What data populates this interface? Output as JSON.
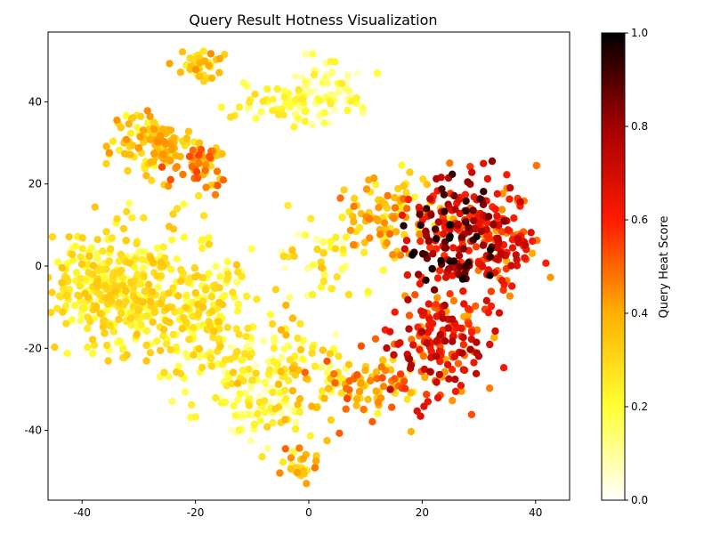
{
  "chart_data": {
    "type": "scatter",
    "title": "Query Result Hotness Visualization",
    "xlabel": "",
    "ylabel": "",
    "xlim": [
      -46,
      46
    ],
    "ylim": [
      -57,
      57
    ],
    "x_ticks": [
      -40,
      -20,
      0,
      20,
      40
    ],
    "y_ticks": [
      -40,
      -20,
      0,
      20,
      40
    ],
    "grid": false,
    "colormap": "hot_r",
    "colorbar": {
      "label": "Query Heat Score",
      "range": [
        0,
        1
      ],
      "ticks": [
        "0.0",
        "0.2",
        "0.4",
        "0.6",
        "0.8",
        "1.0"
      ]
    },
    "clusters": [
      {
        "cx": -34,
        "cy": -5,
        "sx": 5.5,
        "sy": 7,
        "n": 330,
        "heat": [
          0.15,
          0.35
        ]
      },
      {
        "cx": -20,
        "cy": -12,
        "sx": 5,
        "sy": 9,
        "n": 220,
        "heat": [
          0.15,
          0.35
        ]
      },
      {
        "cx": -11,
        "cy": -30,
        "sx": 4,
        "sy": 6,
        "n": 70,
        "heat": [
          0.05,
          0.3
        ]
      },
      {
        "cx": -28,
        "cy": 30,
        "sx": 3.5,
        "sy": 4,
        "n": 120,
        "heat": [
          0.2,
          0.45
        ]
      },
      {
        "cx": -19,
        "cy": 25,
        "sx": 2.5,
        "sy": 3,
        "n": 60,
        "heat": [
          0.25,
          0.55
        ]
      },
      {
        "cx": -19,
        "cy": 49,
        "sx": 2,
        "sy": 2,
        "n": 40,
        "heat": [
          0.2,
          0.45
        ]
      },
      {
        "cx": -7,
        "cy": 40,
        "sx": 4,
        "sy": 2.5,
        "n": 40,
        "heat": [
          0.1,
          0.3
        ]
      },
      {
        "cx": 3,
        "cy": 43,
        "sx": 4,
        "sy": 4,
        "n": 70,
        "heat": [
          0.05,
          0.25
        ]
      },
      {
        "cx": -2,
        "cy": -26,
        "sx": 5,
        "sy": 8,
        "n": 120,
        "heat": [
          0.05,
          0.4
        ]
      },
      {
        "cx": -2,
        "cy": -49,
        "sx": 2,
        "sy": 2,
        "n": 30,
        "heat": [
          0.2,
          0.5
        ]
      },
      {
        "cx": 11,
        "cy": -30,
        "sx": 5,
        "sy": 4,
        "n": 80,
        "heat": [
          0.2,
          0.55
        ]
      },
      {
        "cx": 14,
        "cy": 12,
        "sx": 4,
        "sy": 6,
        "n": 100,
        "heat": [
          0.2,
          0.5
        ]
      },
      {
        "cx": 25,
        "cy": 8,
        "sx": 4,
        "sy": 7,
        "n": 160,
        "heat": [
          0.55,
          1.0
        ]
      },
      {
        "cx": 33,
        "cy": 5,
        "sx": 4,
        "sy": 7,
        "n": 150,
        "heat": [
          0.4,
          0.75
        ]
      },
      {
        "cx": 23,
        "cy": -18,
        "sx": 5,
        "sy": 7,
        "n": 160,
        "heat": [
          0.4,
          0.8
        ]
      },
      {
        "cx": 2,
        "cy": 2,
        "sx": 4,
        "sy": 6,
        "n": 40,
        "heat": [
          0.05,
          0.35
        ]
      }
    ]
  }
}
